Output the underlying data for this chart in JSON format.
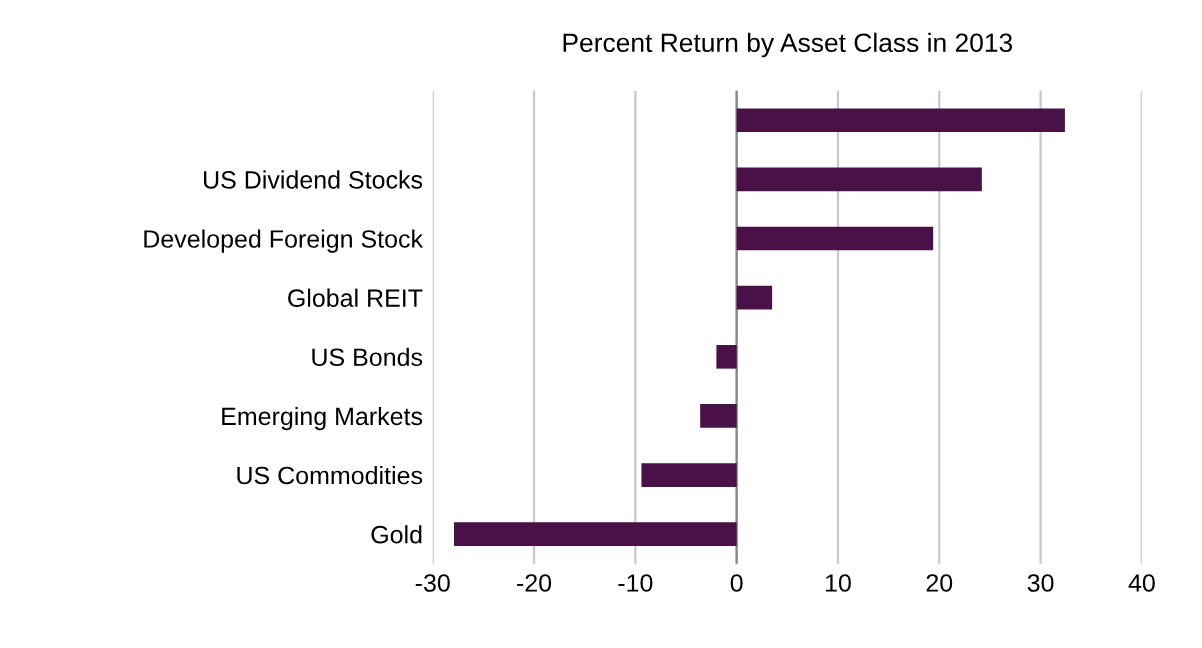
{
  "chart_data": {
    "type": "bar",
    "orientation": "horizontal",
    "title": "Percent Return by Asset Class in 2013",
    "categories": [
      null,
      "US Dividend Stocks",
      "Developed Foreign Stock",
      "Global REIT",
      "US Bonds",
      "Emerging Markets",
      "US Commodities",
      "Gold"
    ],
    "values": [
      32.4,
      24.2,
      19.4,
      3.5,
      -2.0,
      -3.6,
      -9.4,
      -27.9
    ],
    "color": "#4a1048",
    "xlim": [
      -30,
      40
    ],
    "xticks": [
      -30,
      -20,
      -10,
      0,
      10,
      20,
      30,
      40
    ],
    "grid": "x"
  }
}
